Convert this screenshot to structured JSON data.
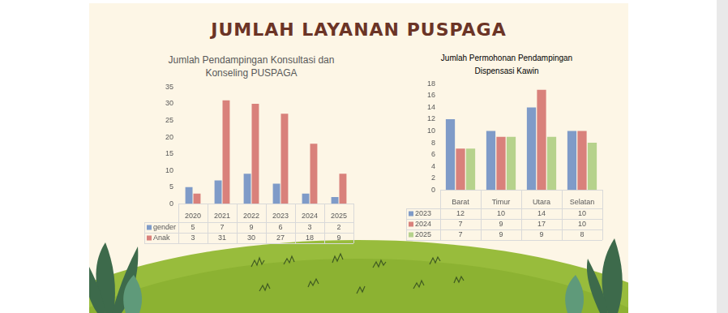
{
  "title": "JUMLAH LAYANAN PUSPAGA",
  "chart_data": [
    {
      "type": "bar",
      "title": "Jumlah Pendampingan Konsultasi dan Konseling PUSPAGA",
      "categories": [
        "2020",
        "2021",
        "2022",
        "2023",
        "2024",
        "2025"
      ],
      "series": [
        {
          "name": "gender",
          "color": "#7f9bc8",
          "values": [
            5,
            7,
            9,
            6,
            3,
            2
          ]
        },
        {
          "name": "Anak",
          "color": "#d9817b",
          "values": [
            3,
            31,
            30,
            27,
            18,
            9
          ]
        }
      ],
      "ylim": [
        0,
        35
      ],
      "yticks": [
        0,
        5,
        10,
        15,
        20,
        25,
        30,
        35
      ],
      "grid": false
    },
    {
      "type": "bar",
      "title": "Jumlah Permohonan Pendampingan Dispensasi Kawin",
      "categories": [
        "Barat",
        "Timur",
        "Utara",
        "Selatan"
      ],
      "series": [
        {
          "name": "2023",
          "color": "#7f9bc8",
          "values": [
            12,
            10,
            14,
            10
          ]
        },
        {
          "name": "2024",
          "color": "#d9817b",
          "values": [
            7,
            9,
            17,
            10
          ]
        },
        {
          "name": "2025",
          "color": "#b6d28c",
          "values": [
            7,
            9,
            9,
            8
          ]
        }
      ],
      "ylim": [
        0,
        18
      ],
      "yticks": [
        0,
        2,
        4,
        6,
        8,
        10,
        12,
        14,
        16,
        18
      ],
      "grid": false
    }
  ]
}
